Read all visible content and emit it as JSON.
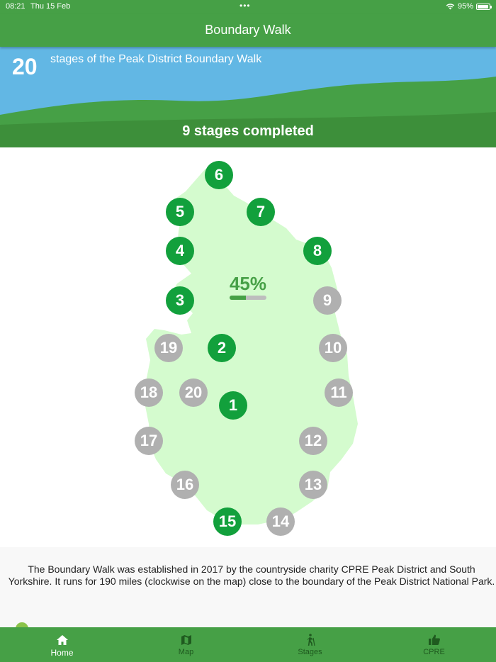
{
  "status_bar": {
    "time": "08:21",
    "date": "Thu 15 Feb",
    "battery": "95%"
  },
  "app_bar": {
    "title": "Boundary Walk"
  },
  "hero": {
    "stage_count": "20",
    "stage_count_label": "stages of the Peak District Boundary Walk",
    "completed_text": "9 stages completed"
  },
  "progress": {
    "percent_label": "45%",
    "value": 0.45
  },
  "stages": [
    {
      "number": "1",
      "status": "completed"
    },
    {
      "number": "2",
      "status": "completed"
    },
    {
      "number": "3",
      "status": "completed"
    },
    {
      "number": "4",
      "status": "completed"
    },
    {
      "number": "5",
      "status": "completed"
    },
    {
      "number": "6",
      "status": "completed"
    },
    {
      "number": "7",
      "status": "completed"
    },
    {
      "number": "8",
      "status": "completed"
    },
    {
      "number": "9",
      "status": "incomplete"
    },
    {
      "number": "10",
      "status": "incomplete"
    },
    {
      "number": "11",
      "status": "incomplete"
    },
    {
      "number": "12",
      "status": "incomplete"
    },
    {
      "number": "13",
      "status": "incomplete"
    },
    {
      "number": "14",
      "status": "incomplete"
    },
    {
      "number": "15",
      "status": "completed"
    },
    {
      "number": "16",
      "status": "incomplete"
    },
    {
      "number": "17",
      "status": "incomplete"
    },
    {
      "number": "18",
      "status": "incomplete"
    },
    {
      "number": "19",
      "status": "incomplete"
    },
    {
      "number": "20",
      "status": "incomplete"
    }
  ],
  "description": "The Boundary Walk was established in 2017 by the countryside charity CPRE Peak District and South Yorkshire. It runs for 190 miles (clockwise on the map) close to the boundary of the Peak District National Park.",
  "bottom_nav": {
    "tabs": [
      {
        "label": "Home",
        "icon": "home-icon",
        "active": true
      },
      {
        "label": "Map",
        "icon": "map-icon",
        "active": false
      },
      {
        "label": "Stages",
        "icon": "hiker-icon",
        "active": false
      },
      {
        "label": "CPRE",
        "icon": "thumbs-up-icon",
        "active": false
      }
    ]
  },
  "colors": {
    "brand_green": "#46a046",
    "completed_stage": "#12a03c",
    "incomplete_stage": "#b0b0b0",
    "sky": "#62b7e4",
    "park_area": "#d4fbce"
  }
}
